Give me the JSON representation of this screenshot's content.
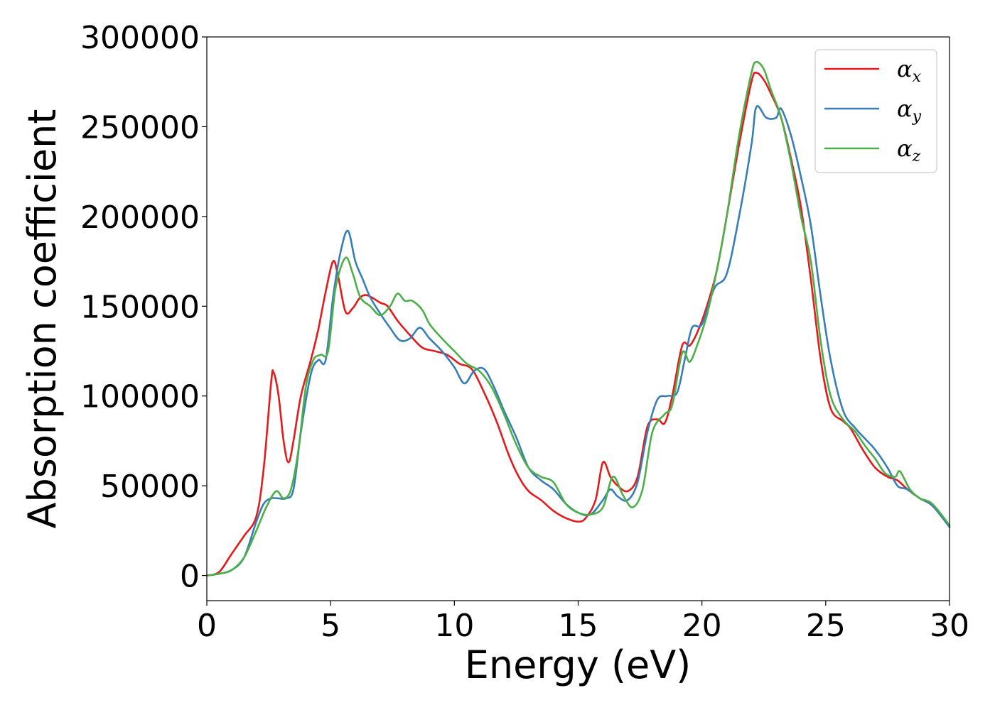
{
  "chart_data": {
    "type": "line",
    "xlabel": "Energy (eV)",
    "ylabel": "Absorption coefficient",
    "xlim": [
      0,
      30
    ],
    "ylim": [
      -14000,
      300000
    ],
    "xticks": [
      0,
      5,
      10,
      15,
      20,
      25,
      30
    ],
    "xtick_labels": [
      "0",
      "5",
      "10",
      "15",
      "20",
      "25",
      "30"
    ],
    "yticks": [
      0,
      50000,
      100000,
      150000,
      200000,
      250000,
      300000
    ],
    "ytick_labels": [
      "0",
      "50000",
      "100000",
      "150000",
      "200000",
      "250000",
      "300000"
    ],
    "grid": false,
    "legend_position": "top-right",
    "series": [
      {
        "name": "α",
        "subscript": "x",
        "color": "#e41a1c",
        "x": [
          0,
          0.5,
          1.0,
          1.5,
          2.0,
          2.3,
          2.6,
          2.7,
          2.9,
          3.1,
          3.3,
          3.5,
          3.8,
          4.2,
          4.5,
          4.8,
          5.1,
          5.3,
          5.6,
          5.9,
          6.2,
          6.5,
          7.0,
          7.3,
          7.7,
          8.2,
          8.7,
          9.2,
          9.7,
          10.2,
          10.7,
          11.2,
          11.7,
          12.2,
          12.6,
          13.0,
          13.5,
          14.0,
          14.5,
          15.0,
          15.3,
          15.7,
          16.0,
          16.3,
          16.6,
          17.0,
          17.4,
          17.8,
          18.2,
          18.5,
          18.8,
          19.2,
          19.5,
          19.8,
          20.2,
          20.6,
          21.0,
          21.5,
          22.0,
          22.2,
          22.5,
          22.8,
          23.2,
          23.6,
          24.0,
          24.4,
          24.8,
          25.2,
          25.7,
          26.0,
          26.5,
          27.0,
          27.5,
          27.9,
          28.3,
          28.8,
          29.3,
          30.0
        ],
        "y": [
          0,
          2000,
          12000,
          22000,
          33000,
          60000,
          108000,
          113000,
          100000,
          75000,
          63000,
          75000,
          100000,
          120000,
          137000,
          158000,
          175000,
          167000,
          147000,
          149000,
          155000,
          156000,
          152000,
          150000,
          142000,
          134000,
          127000,
          125000,
          123000,
          118000,
          115000,
          102000,
          86000,
          67000,
          55000,
          47000,
          42000,
          36000,
          32000,
          30000,
          32000,
          42000,
          63000,
          55000,
          50000,
          47000,
          55000,
          83000,
          87000,
          85000,
          100000,
          128000,
          128000,
          135000,
          150000,
          170000,
          200000,
          240000,
          275000,
          280000,
          276000,
          268000,
          255000,
          232000,
          205000,
          165000,
          120000,
          93000,
          86000,
          82000,
          70000,
          60000,
          55000,
          53000,
          48000,
          43000,
          39000,
          28000
        ]
      },
      {
        "name": "α",
        "subscript": "y",
        "color": "#377eb8",
        "x": [
          0,
          0.5,
          1.0,
          1.5,
          2.0,
          2.3,
          2.6,
          2.9,
          3.2,
          3.5,
          3.8,
          4.2,
          4.5,
          4.8,
          5.1,
          5.4,
          5.7,
          6.0,
          6.3,
          6.6,
          7.0,
          7.4,
          7.8,
          8.2,
          8.6,
          9.0,
          9.5,
          10.0,
          10.4,
          10.8,
          11.2,
          11.6,
          12.0,
          12.5,
          13.0,
          13.5,
          14.0,
          14.5,
          15.0,
          15.5,
          16.0,
          16.3,
          16.6,
          17.0,
          17.4,
          17.8,
          18.2,
          18.6,
          19.0,
          19.3,
          19.6,
          20.0,
          20.5,
          21.0,
          21.5,
          22.0,
          22.2,
          22.6,
          23.0,
          23.2,
          23.6,
          24.0,
          24.4,
          24.8,
          25.2,
          25.7,
          26.2,
          26.6,
          27.0,
          27.5,
          27.9,
          28.3,
          28.8,
          29.3,
          30.0
        ],
        "y": [
          0,
          1000,
          3000,
          10000,
          30000,
          40000,
          43000,
          43000,
          43000,
          48000,
          80000,
          112000,
          120000,
          120000,
          155000,
          180000,
          192000,
          175000,
          165000,
          155000,
          146000,
          138000,
          131000,
          132000,
          138000,
          132000,
          125000,
          116000,
          107000,
          114000,
          115000,
          105000,
          92000,
          77000,
          60000,
          53000,
          48000,
          40000,
          35000,
          34000,
          42000,
          48000,
          44000,
          42000,
          52000,
          80000,
          98000,
          100000,
          102000,
          120000,
          138000,
          140000,
          160000,
          168000,
          200000,
          240000,
          261000,
          255000,
          255000,
          260000,
          245000,
          222000,
          195000,
          155000,
          120000,
          92000,
          82000,
          76000,
          70000,
          60000,
          50000,
          48000,
          43000,
          39000,
          27000
        ]
      },
      {
        "name": "α",
        "subscript": "z",
        "color": "#4daf4a",
        "x": [
          0,
          0.5,
          1.0,
          1.5,
          2.0,
          2.4,
          2.8,
          3.1,
          3.4,
          3.7,
          4.0,
          4.3,
          4.6,
          4.9,
          5.2,
          5.6,
          5.9,
          6.2,
          6.6,
          7.0,
          7.4,
          7.7,
          8.0,
          8.3,
          8.7,
          9.0,
          9.5,
          10.0,
          10.5,
          11.0,
          11.5,
          12.0,
          12.5,
          13.0,
          13.5,
          14.0,
          14.5,
          15.0,
          15.5,
          16.0,
          16.4,
          16.8,
          17.2,
          17.6,
          18.0,
          18.5,
          18.8,
          19.2,
          19.5,
          19.8,
          20.2,
          20.6,
          21.0,
          21.5,
          22.0,
          22.2,
          22.5,
          22.8,
          23.2,
          23.6,
          24.0,
          24.4,
          24.8,
          25.2,
          25.7,
          26.2,
          26.6,
          27.0,
          27.4,
          27.8,
          28.0,
          28.4,
          28.8,
          29.3,
          30.0
        ],
        "y": [
          0,
          1000,
          3000,
          10000,
          25000,
          38000,
          47000,
          43000,
          48000,
          70000,
          105000,
          120000,
          123000,
          125000,
          160000,
          177000,
          168000,
          155000,
          150000,
          145000,
          150000,
          157000,
          153000,
          153000,
          148000,
          140000,
          132000,
          125000,
          118000,
          114000,
          105000,
          90000,
          73000,
          60000,
          55000,
          52000,
          40000,
          35000,
          34000,
          38000,
          55000,
          45000,
          38000,
          48000,
          80000,
          90000,
          95000,
          124000,
          119000,
          128000,
          145000,
          170000,
          200000,
          245000,
          280000,
          286000,
          282000,
          270000,
          255000,
          230000,
          200000,
          175000,
          130000,
          100000,
          87000,
          80000,
          72000,
          65000,
          57000,
          55000,
          58000,
          48000,
          43000,
          40000,
          28000
        ]
      }
    ]
  }
}
